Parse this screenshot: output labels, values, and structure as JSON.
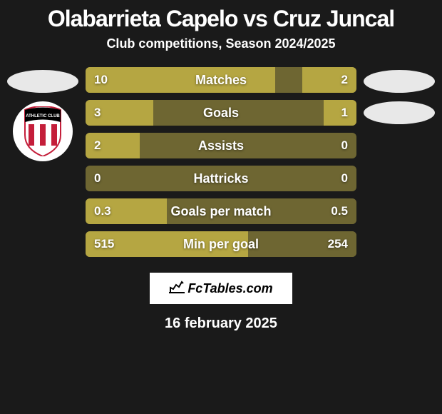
{
  "title": "Olabarrieta Capelo vs Cruz Juncal",
  "subtitle": "Club competitions, Season 2024/2025",
  "colors": {
    "background": "#1a1a1a",
    "bar_highlight": "#b5a642",
    "bar_muted": "#6e6632",
    "bar_bg": "#3a3a1a",
    "ellipse": "#e8e8e8",
    "text": "#ffffff"
  },
  "stats": [
    {
      "label": "Matches",
      "left_value": "10",
      "right_value": "2",
      "left_pct": 70,
      "right_pct": 20,
      "left_color": "#b5a642",
      "right_color": "#b5a642",
      "bg_color": "#6e6632"
    },
    {
      "label": "Goals",
      "left_value": "3",
      "right_value": "1",
      "left_pct": 25,
      "right_pct": 12,
      "left_color": "#b5a642",
      "right_color": "#b5a642",
      "bg_color": "#6e6632"
    },
    {
      "label": "Assists",
      "left_value": "2",
      "right_value": "0",
      "left_pct": 20,
      "right_pct": 0,
      "left_color": "#b5a642",
      "right_color": "#6e6632",
      "bg_color": "#6e6632"
    },
    {
      "label": "Hattricks",
      "left_value": "0",
      "right_value": "0",
      "left_pct": 0,
      "right_pct": 0,
      "left_color": "#6e6632",
      "right_color": "#6e6632",
      "bg_color": "#6e6632"
    },
    {
      "label": "Goals per match",
      "left_value": "0.3",
      "right_value": "0.5",
      "left_pct": 30,
      "right_pct": 50,
      "left_color": "#b5a642",
      "right_color": "#6e6632",
      "bg_color": "#6e6632"
    },
    {
      "label": "Min per goal",
      "left_value": "515",
      "right_value": "254",
      "left_pct": 60,
      "right_pct": 30,
      "left_color": "#b5a642",
      "right_color": "#6e6632",
      "bg_color": "#6e6632"
    }
  ],
  "footer": {
    "logo_text": "FcTables.com",
    "date": "16 february 2025"
  },
  "left_club": {
    "badge_visible": true
  }
}
